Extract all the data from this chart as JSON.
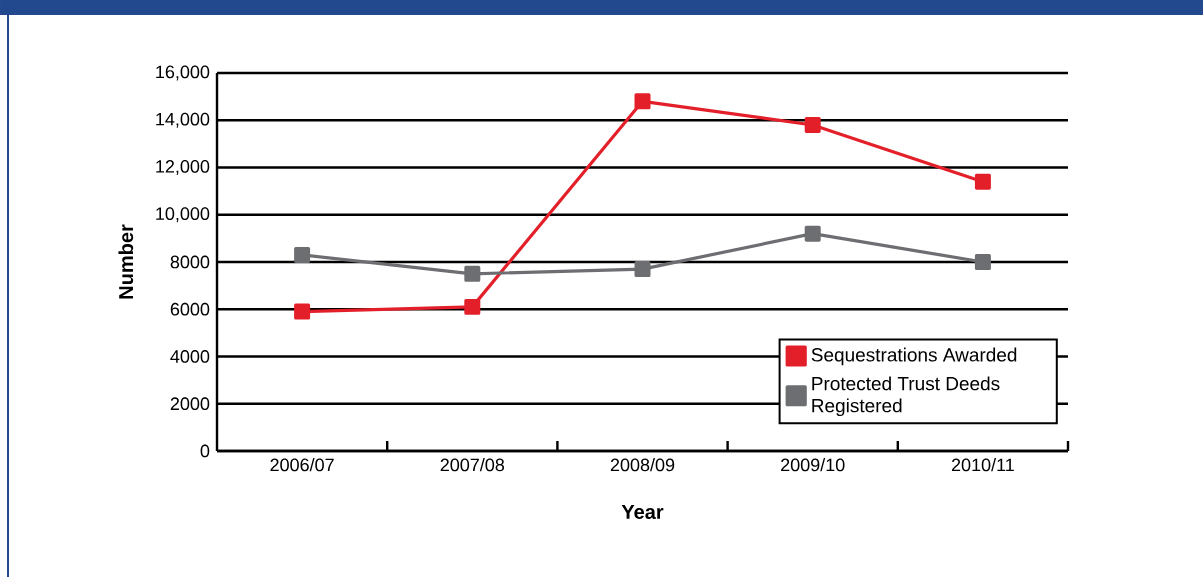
{
  "chart_data": {
    "type": "line",
    "xlabel": "Year",
    "ylabel": "Number",
    "categories": [
      "2006/07",
      "2007/08",
      "2008/09",
      "2009/10",
      "2010/11"
    ],
    "series": [
      {
        "name": "Sequestrations Awarded",
        "color": "#e3202a",
        "values": [
          5900,
          6100,
          14800,
          13800,
          11400
        ]
      },
      {
        "name": "Protected Trust Deeds Registered",
        "color": "#6d6e71",
        "values": [
          8300,
          7500,
          7700,
          9200,
          8000
        ]
      }
    ],
    "ylim": [
      0,
      16000
    ],
    "yticks": [
      0,
      2000,
      4000,
      6000,
      8000,
      {
        "value": 10000,
        "label": "10,000"
      },
      {
        "value": 12000,
        "label": "12,000"
      },
      {
        "value": 14000,
        "label": "14,000"
      },
      {
        "value": 16000,
        "label": "16,000"
      }
    ],
    "grid": "y",
    "legend": "bottom right",
    "marker": "square",
    "line_style": "solid"
  }
}
